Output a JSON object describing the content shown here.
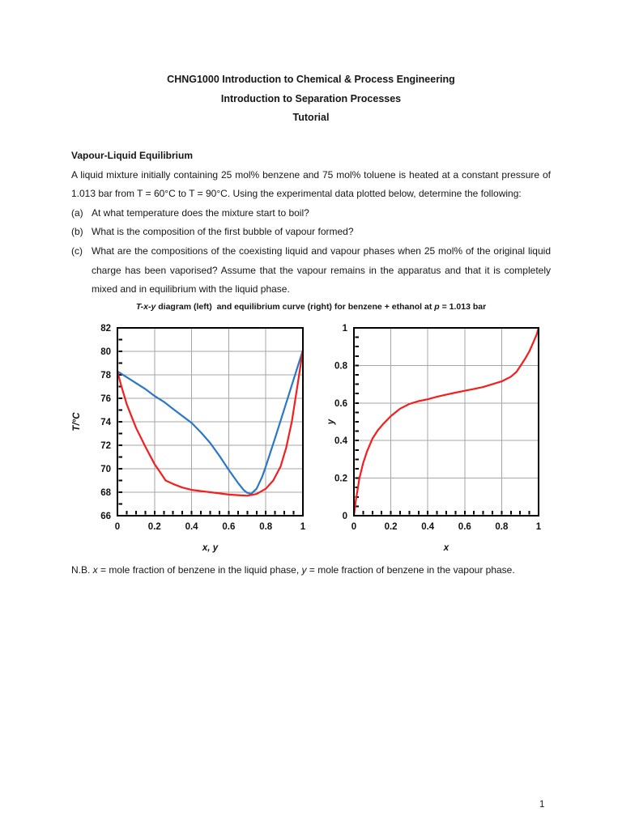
{
  "page": {
    "titles": [
      "CHNG1000 Introduction to Chemical & Process Engineering",
      "Introduction to Separation Processes",
      "Tutorial"
    ],
    "section_heading": "Vapour-Liquid Equilibrium",
    "intro": "A liquid mixture initially containing 25 mol% benzene and 75 mol% toluene is heated at a constant pressure of 1.013 bar from T = 60°C to T = 90°C. Using the experimental data plotted below, determine the following:",
    "questions": [
      {
        "label": "(a)",
        "text": "At what temperature does the mixture start to boil?"
      },
      {
        "label": "(b)",
        "text": "What is the composition of the first bubble of vapour formed?"
      },
      {
        "label": "(c)",
        "text": "What are the compositions of the coexisting liquid and vapour phases when 25 mol% of the original liquid charge has been vaporised? Assume that the vapour remains in the apparatus and that it is completely mixed and in equilibrium with the liquid phase."
      }
    ],
    "figure_caption": {
      "part1_italic": "T-x-y",
      "part2": " diagram (left)  and equilibrium curve (right) for benzene + ethanol at ",
      "part3_italic": "p",
      "part4": " = 1.013 bar"
    },
    "note": {
      "part1": "N.B. ",
      "part2_italic": "x",
      "part3": " = mole fraction of benzene in the liquid phase, ",
      "part4_italic": "y",
      "part5": " = mole fraction of benzene in the vapour phase."
    },
    "page_number": "1"
  },
  "chart_data": [
    {
      "id": "txy-diagram",
      "type": "line",
      "title": "T-x-y diagram for benzene + ethanol at p = 1.013 bar",
      "xlabel": "x, y",
      "ylabel": "T/°C",
      "xlim": [
        0,
        1
      ],
      "ylim": [
        66,
        82
      ],
      "xticks": [
        0,
        0.2,
        0.4,
        0.6,
        0.8,
        1
      ],
      "yticks": [
        66,
        68,
        70,
        72,
        74,
        76,
        78,
        80,
        82
      ],
      "x_minor_step": 0.05,
      "y_minor_step": 1,
      "grid": true,
      "grid_color": "#a6a6a6",
      "legend": "none",
      "series": [
        {
          "id": "dew-point-curve",
          "name": "dew point curve (T vs y, vapour)",
          "color": "#2878c8",
          "points": [
            [
              0,
              78.3
            ],
            [
              0.05,
              77.8
            ],
            [
              0.1,
              77.3
            ],
            [
              0.15,
              76.8
            ],
            [
              0.2,
              76.2
            ],
            [
              0.25,
              75.7
            ],
            [
              0.3,
              75.1
            ],
            [
              0.35,
              74.5
            ],
            [
              0.4,
              73.9
            ],
            [
              0.45,
              73.1
            ],
            [
              0.5,
              72.2
            ],
            [
              0.55,
              71.1
            ],
            [
              0.6,
              69.9
            ],
            [
              0.65,
              68.8
            ],
            [
              0.68,
              68.2
            ],
            [
              0.7,
              67.95
            ],
            [
              0.72,
              67.85
            ],
            [
              0.75,
              68.3
            ],
            [
              0.78,
              69.3
            ],
            [
              0.8,
              70.2
            ],
            [
              0.85,
              72.6
            ],
            [
              0.9,
              75.1
            ],
            [
              0.95,
              77.6
            ],
            [
              1,
              80.1
            ]
          ]
        },
        {
          "id": "bubble-point-curve",
          "name": "bubble point curve (T vs x, liquid)",
          "color": "#f51d1d",
          "points": [
            [
              0,
              78.3
            ],
            [
              0.02,
              77.1
            ],
            [
              0.05,
              75.5
            ],
            [
              0.08,
              74.3
            ],
            [
              0.1,
              73.5
            ],
            [
              0.15,
              71.9
            ],
            [
              0.2,
              70.4
            ],
            [
              0.23,
              69.7
            ],
            [
              0.26,
              69.0
            ],
            [
              0.3,
              68.7
            ],
            [
              0.35,
              68.4
            ],
            [
              0.4,
              68.2
            ],
            [
              0.45,
              68.1
            ],
            [
              0.5,
              68.0
            ],
            [
              0.55,
              67.9
            ],
            [
              0.6,
              67.8
            ],
            [
              0.65,
              67.75
            ],
            [
              0.7,
              67.7
            ],
            [
              0.75,
              67.85
            ],
            [
              0.8,
              68.3
            ],
            [
              0.84,
              69.0
            ],
            [
              0.88,
              70.2
            ],
            [
              0.91,
              71.8
            ],
            [
              0.94,
              74.0
            ],
            [
              0.97,
              77.0
            ],
            [
              1,
              80.1
            ]
          ]
        }
      ]
    },
    {
      "id": "equilibrium-curve-chart",
      "type": "line",
      "title": "equilibrium curve for benzene + ethanol at p = 1.013 bar",
      "xlabel": "x",
      "ylabel": "y",
      "xlim": [
        0,
        1
      ],
      "ylim": [
        0,
        1
      ],
      "xticks": [
        0,
        0.2,
        0.4,
        0.6,
        0.8,
        1
      ],
      "yticks": [
        0,
        0.2,
        0.4,
        0.6,
        0.8,
        1
      ],
      "x_minor_step": 0.05,
      "y_minor_step": 0.05,
      "grid": true,
      "grid_color": "#a6a6a6",
      "legend": "none",
      "series": [
        {
          "id": "equilibrium-curve",
          "name": "equilibrium curve (y vs x)",
          "color": "#f51d1d",
          "points": [
            [
              0,
              0
            ],
            [
              0.01,
              0.08
            ],
            [
              0.02,
              0.14
            ],
            [
              0.03,
              0.2
            ],
            [
              0.05,
              0.28
            ],
            [
              0.07,
              0.34
            ],
            [
              0.1,
              0.41
            ],
            [
              0.13,
              0.455
            ],
            [
              0.16,
              0.49
            ],
            [
              0.2,
              0.53
            ],
            [
              0.25,
              0.57
            ],
            [
              0.3,
              0.595
            ],
            [
              0.35,
              0.61
            ],
            [
              0.4,
              0.62
            ],
            [
              0.45,
              0.633
            ],
            [
              0.5,
              0.645
            ],
            [
              0.55,
              0.655
            ],
            [
              0.6,
              0.665
            ],
            [
              0.65,
              0.675
            ],
            [
              0.7,
              0.685
            ],
            [
              0.75,
              0.7
            ],
            [
              0.8,
              0.715
            ],
            [
              0.85,
              0.74
            ],
            [
              0.88,
              0.765
            ],
            [
              0.9,
              0.795
            ],
            [
              0.93,
              0.84
            ],
            [
              0.95,
              0.875
            ],
            [
              0.97,
              0.92
            ],
            [
              0.99,
              0.965
            ],
            [
              1,
              1
            ]
          ]
        }
      ]
    }
  ]
}
